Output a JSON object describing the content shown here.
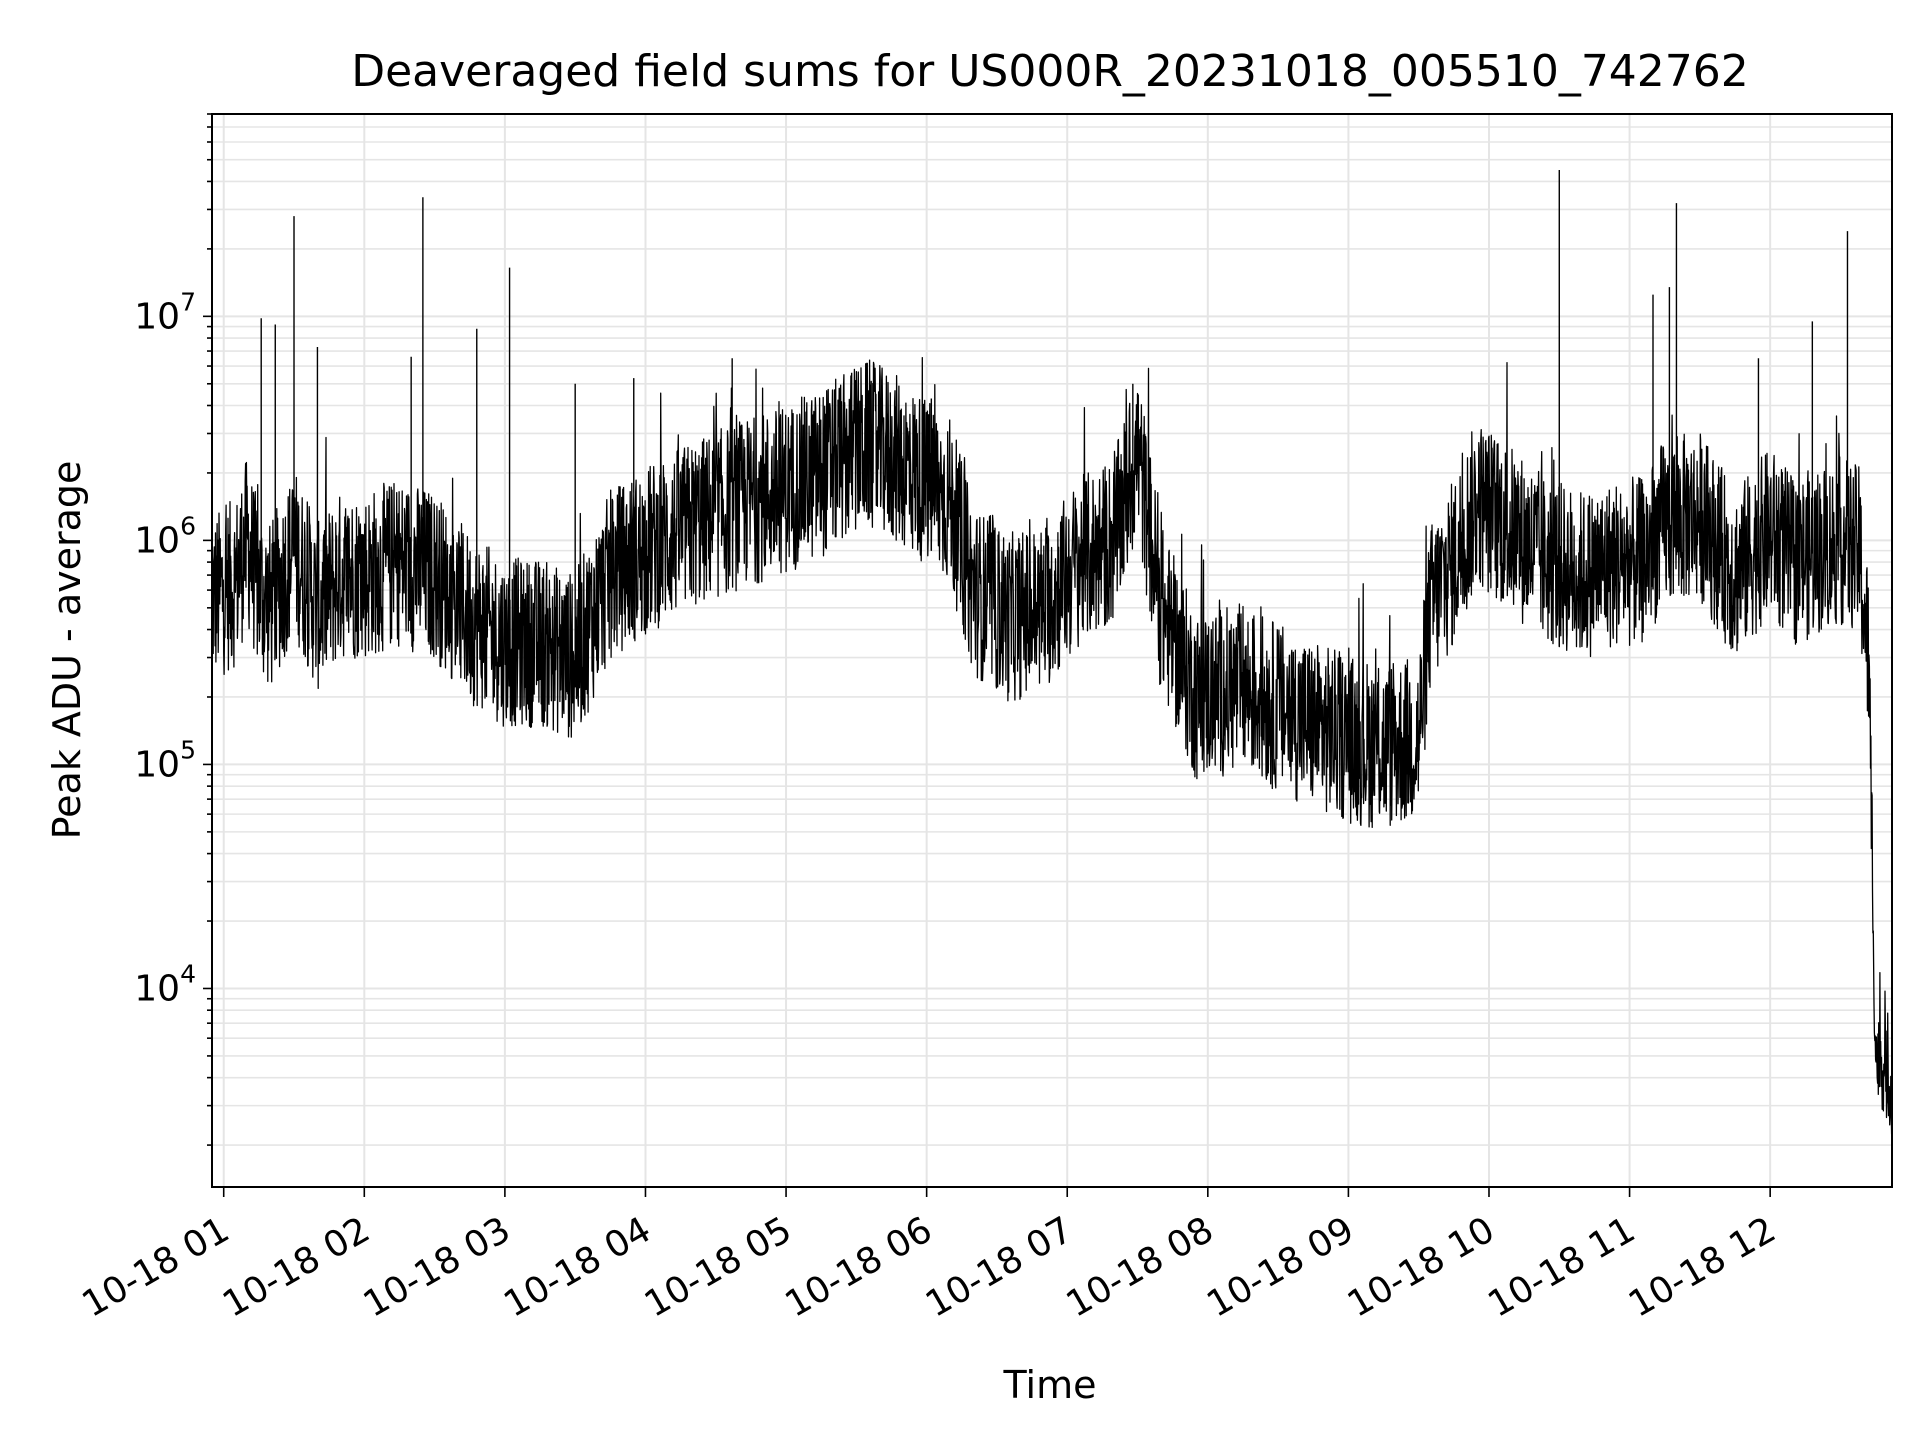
{
  "chart_data": {
    "type": "line",
    "title": "Deaveraged field sums for US000R_20231018_005510_742762",
    "xlabel": "Time",
    "ylabel": "Peak ADU - average",
    "yscale": "log",
    "ylim": [
      1300,
      80000000
    ],
    "xlim": [
      "2023-10-18 00:55:00",
      "2023-10-18 12:52:00"
    ],
    "grid": true,
    "line_color": "#000000",
    "grid_color": "#e5e5e5",
    "x_ticks": [
      {
        "t": "2023-10-18 01:00",
        "label": "10-18 01"
      },
      {
        "t": "2023-10-18 02:00",
        "label": "10-18 02"
      },
      {
        "t": "2023-10-18 03:00",
        "label": "10-18 03"
      },
      {
        "t": "2023-10-18 04:00",
        "label": "10-18 04"
      },
      {
        "t": "2023-10-18 05:00",
        "label": "10-18 05"
      },
      {
        "t": "2023-10-18 06:00",
        "label": "10-18 06"
      },
      {
        "t": "2023-10-18 07:00",
        "label": "10-18 07"
      },
      {
        "t": "2023-10-18 08:00",
        "label": "10-18 08"
      },
      {
        "t": "2023-10-18 09:00",
        "label": "10-18 09"
      },
      {
        "t": "2023-10-18 10:00",
        "label": "10-18 10"
      },
      {
        "t": "2023-10-18 11:00",
        "label": "10-18 11"
      },
      {
        "t": "2023-10-18 12:00",
        "label": "10-18 12"
      }
    ],
    "y_ticks": [
      {
        "value": 10000,
        "base": "10",
        "exp": "4"
      },
      {
        "value": 100000,
        "base": "10",
        "exp": "5"
      },
      {
        "value": 1000000,
        "base": "10",
        "exp": "6"
      },
      {
        "value": 10000000,
        "base": "10",
        "exp": "7"
      }
    ],
    "series": [
      {
        "values": [
          [
            "2023-10-18 00:55",
            550000
          ],
          [
            "2023-10-18 01:05",
            650000
          ],
          [
            "2023-10-18 01:10",
            1000000
          ],
          [
            "2023-10-18 01:15",
            600000
          ],
          [
            "2023-10-18 01:20",
            500000
          ],
          [
            "2023-10-18 01:30",
            900000
          ],
          [
            "2023-10-18 01:40",
            500000
          ],
          [
            "2023-10-18 01:50",
            700000
          ],
          [
            "2023-10-18 02:00",
            700000
          ],
          [
            "2023-10-18 02:15",
            800000
          ],
          [
            "2023-10-18 02:30",
            700000
          ],
          [
            "2023-10-18 02:45",
            450000
          ],
          [
            "2023-10-18 03:00",
            350000
          ],
          [
            "2023-10-18 03:15",
            350000
          ],
          [
            "2023-10-18 03:30",
            300000
          ],
          [
            "2023-10-18 03:45",
            700000
          ],
          [
            "2023-10-18 04:00",
            900000
          ],
          [
            "2023-10-18 04:15",
            1100000
          ],
          [
            "2023-10-18 04:30",
            1300000
          ],
          [
            "2023-10-18 04:45",
            1500000
          ],
          [
            "2023-10-18 05:00",
            1700000
          ],
          [
            "2023-10-18 05:15",
            2000000
          ],
          [
            "2023-10-18 05:35",
            2700000
          ],
          [
            "2023-10-18 05:50",
            2200000
          ],
          [
            "2023-10-18 06:10",
            1500000
          ],
          [
            "2023-10-18 06:20",
            600000
          ],
          [
            "2023-10-18 06:35",
            450000
          ],
          [
            "2023-10-18 06:50",
            500000
          ],
          [
            "2023-10-18 07:05",
            800000
          ],
          [
            "2023-10-18 07:20",
            1000000
          ],
          [
            "2023-10-18 07:30",
            2500000
          ],
          [
            "2023-10-18 07:40",
            500000
          ],
          [
            "2023-10-18 07:55",
            200000
          ],
          [
            "2023-10-18 08:15",
            220000
          ],
          [
            "2023-10-18 08:30",
            180000
          ],
          [
            "2023-10-18 08:45",
            150000
          ],
          [
            "2023-10-18 09:00",
            130000
          ],
          [
            "2023-10-18 09:15",
            120000
          ],
          [
            "2023-10-18 09:30",
            130000
          ],
          [
            "2023-10-18 09:35",
            500000
          ],
          [
            "2023-10-18 09:45",
            800000
          ],
          [
            "2023-10-18 09:55",
            1500000
          ],
          [
            "2023-10-18 10:10",
            1100000
          ],
          [
            "2023-10-18 10:25",
            800000
          ],
          [
            "2023-10-18 10:40",
            700000
          ],
          [
            "2023-10-18 10:55",
            800000
          ],
          [
            "2023-10-18 11:05",
            800000
          ],
          [
            "2023-10-18 11:15",
            1200000
          ],
          [
            "2023-10-18 11:30",
            1300000
          ],
          [
            "2023-10-18 11:45",
            700000
          ],
          [
            "2023-10-18 12:00",
            1100000
          ],
          [
            "2023-10-18 12:10",
            800000
          ],
          [
            "2023-10-18 12:20",
            900000
          ],
          [
            "2023-10-18 12:30",
            1000000
          ],
          [
            "2023-10-18 12:38",
            900000
          ],
          [
            "2023-10-18 12:42",
            300000
          ],
          [
            "2023-10-18 12:45",
            5000
          ],
          [
            "2023-10-18 12:48",
            4500
          ],
          [
            "2023-10-18 12:52",
            3500
          ]
        ],
        "spikes": [
          [
            "2023-10-18 01:16",
            9800000
          ],
          [
            "2023-10-18 01:22",
            9200000
          ],
          [
            "2023-10-18 01:30",
            28000000
          ],
          [
            "2023-10-18 01:40",
            7300000
          ],
          [
            "2023-10-18 02:20",
            6600000
          ],
          [
            "2023-10-18 02:25",
            34000000
          ],
          [
            "2023-10-18 02:48",
            8800000
          ],
          [
            "2023-10-18 03:02",
            16500000
          ],
          [
            "2023-10-18 03:30",
            5000000
          ],
          [
            "2023-10-18 03:55",
            5300000
          ],
          [
            "2023-10-18 04:37",
            6500000
          ],
          [
            "2023-10-18 05:28",
            5600000
          ],
          [
            "2023-10-18 06:02",
            4300000
          ],
          [
            "2023-10-18 07:28",
            5000000
          ],
          [
            "2023-10-18 10:30",
            45000000
          ],
          [
            "2023-10-18 11:10",
            12500000
          ],
          [
            "2023-10-18 11:17",
            13500000
          ],
          [
            "2023-10-18 11:20",
            32000000
          ],
          [
            "2023-10-18 11:55",
            6500000
          ],
          [
            "2023-10-18 12:18",
            9500000
          ],
          [
            "2023-10-18 12:33",
            24000000
          ]
        ]
      }
    ]
  }
}
